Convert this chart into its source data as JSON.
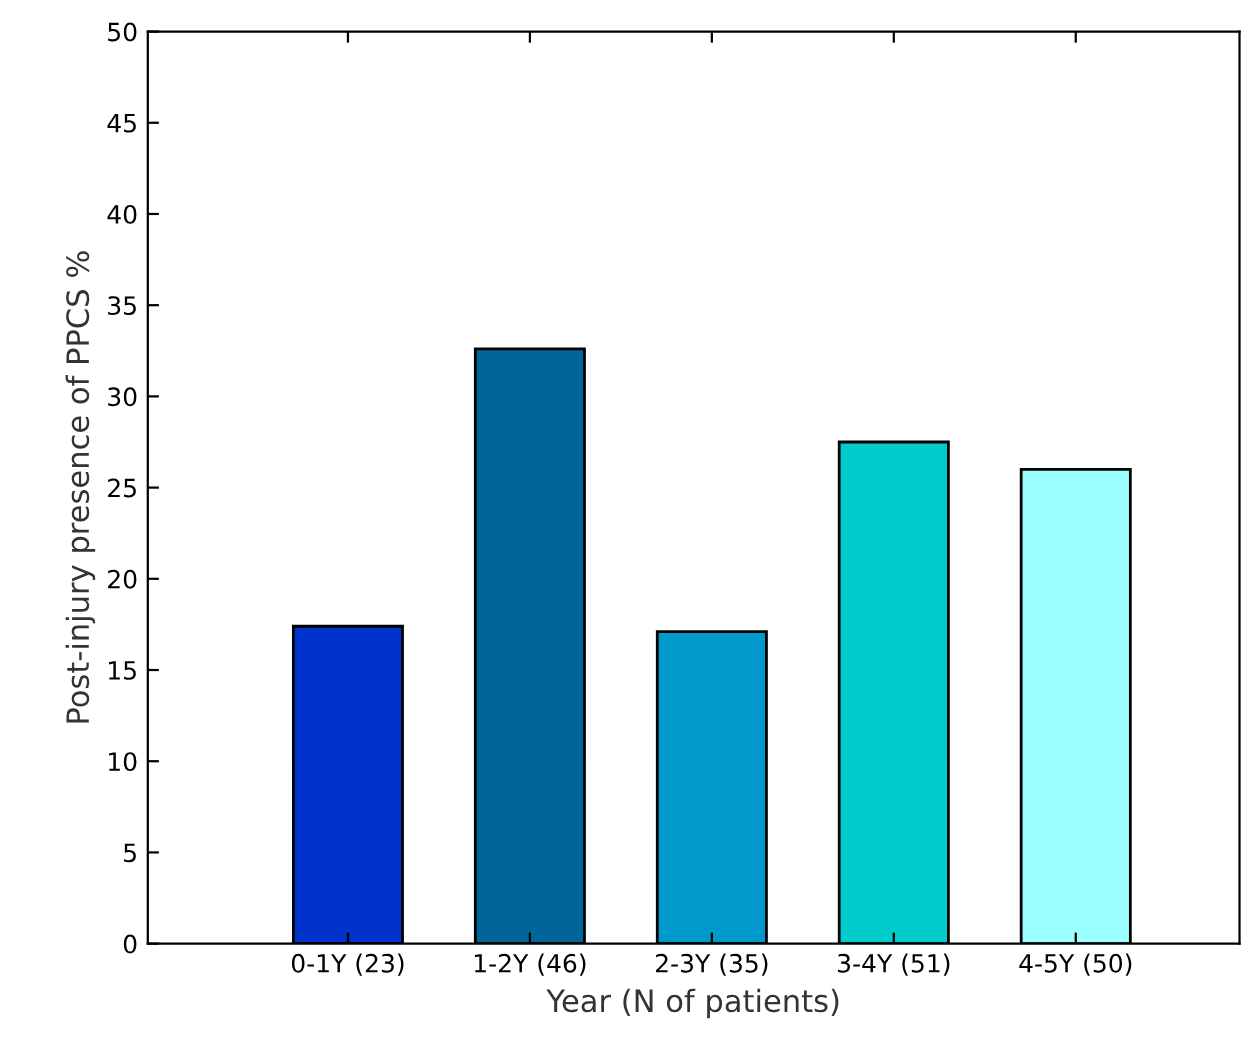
{
  "chart_data": {
    "type": "bar",
    "xlabel": "Year (N of patients)",
    "ylabel": "Post-injury presence of PPCS %",
    "categories": [
      "0-1Y (23)",
      "1-2Y (46)",
      "2-3Y (35)",
      "3-4Y (51)",
      "4-5Y (50)"
    ],
    "values": [
      17.4,
      32.6,
      17.1,
      27.5,
      26.0
    ],
    "colors": [
      "#0033cc",
      "#006699",
      "#0099cc",
      "#00cccc",
      "#99ffff"
    ],
    "ylim": [
      0,
      50
    ],
    "yticks": [
      0,
      5,
      10,
      15,
      20,
      25,
      30,
      35,
      40,
      45,
      50
    ],
    "grid": false,
    "legend": false
  }
}
